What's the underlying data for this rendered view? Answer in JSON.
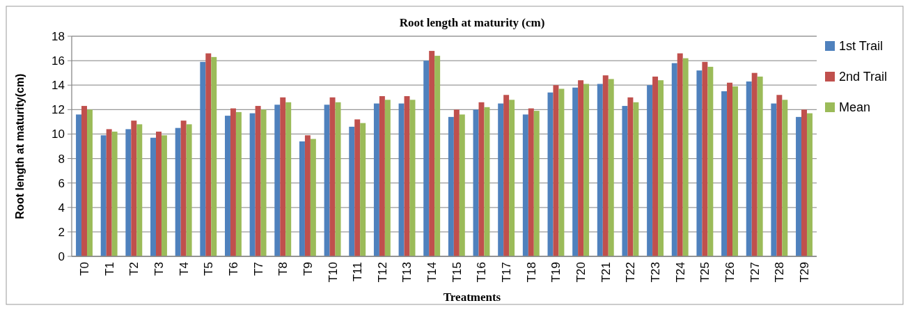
{
  "chart_data": {
    "type": "bar",
    "title": "Root length at maturity  (cm)",
    "xlabel": "Treatments",
    "ylabel": "Root length at maturity(cm)",
    "categories": [
      "T0",
      "T1",
      "T2",
      "T3",
      "T4",
      "T5",
      "T6",
      "T7",
      "T8",
      "T9",
      "T10",
      "T11",
      "T12",
      "T13",
      "T14",
      "T15",
      "T16",
      "T17",
      "T18",
      "T19",
      "T20",
      "T21",
      "T22",
      "T23",
      "T24",
      "T25",
      "T26",
      "T27",
      "T28",
      "T29"
    ],
    "series": [
      {
        "name": "1st Trail",
        "color": "#4f81bd",
        "values": [
          11.6,
          9.9,
          10.4,
          9.7,
          10.5,
          15.9,
          11.5,
          11.7,
          12.4,
          9.4,
          12.4,
          10.6,
          12.5,
          12.5,
          16.0,
          11.4,
          12.0,
          12.5,
          11.6,
          13.4,
          13.8,
          14.1,
          12.3,
          14.0,
          15.8,
          15.2,
          13.5,
          14.3,
          12.5,
          11.4
        ]
      },
      {
        "name": "2nd Trail",
        "color": "#c0504d",
        "values": [
          12.3,
          10.4,
          11.1,
          10.2,
          11.1,
          16.6,
          12.1,
          12.3,
          13.0,
          9.9,
          13.0,
          11.2,
          13.1,
          13.1,
          16.8,
          12.0,
          12.6,
          13.2,
          12.1,
          14.0,
          14.4,
          14.8,
          13.0,
          14.7,
          16.6,
          15.9,
          14.2,
          15.0,
          13.2,
          12.0
        ]
      },
      {
        "name": "Mean",
        "color": "#9bbb59",
        "values": [
          12.0,
          10.2,
          10.8,
          9.9,
          10.8,
          16.3,
          11.8,
          12.0,
          12.6,
          9.6,
          12.6,
          10.9,
          12.8,
          12.8,
          16.4,
          11.6,
          12.2,
          12.8,
          11.9,
          13.7,
          14.1,
          14.5,
          12.6,
          14.4,
          16.2,
          15.5,
          13.9,
          14.7,
          12.8,
          11.7
        ]
      }
    ],
    "ylim": [
      0,
      18
    ],
    "yticks": [
      0,
      2,
      4,
      6,
      8,
      10,
      12,
      14,
      16,
      18
    ],
    "grid": "y",
    "legend": "right"
  }
}
